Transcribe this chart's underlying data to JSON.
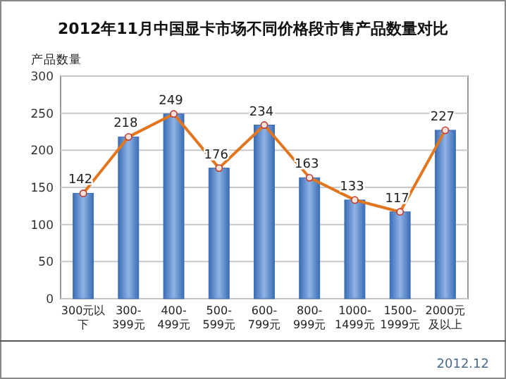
{
  "chart_data": {
    "type": "bar",
    "title": "2012年11月中国显卡市场不同价格段市售产品数量对比",
    "ylabel": "产品数量",
    "categories": [
      "300元以下",
      "300-399元",
      "400-499元",
      "500-599元",
      "600-799元",
      "800-999元",
      "1000-1499元",
      "1500-1999元",
      "2000元及以上"
    ],
    "series": [
      {
        "color": "#3b6db4",
        "values": [
          142,
          218,
          249,
          176,
          234,
          163,
          133,
          117,
          227
        ]
      },
      {
        "type": "line",
        "color": "#e2761f",
        "values": [
          142,
          218,
          249,
          176,
          234,
          163,
          133,
          117,
          227
        ],
        "value_labels": [
          "142",
          "218",
          "249",
          "176",
          "234",
          "163",
          "133",
          "117",
          "227"
        ]
      }
    ],
    "ylim": [
      0,
      300
    ],
    "yticks": [
      0,
      50,
      100,
      150,
      200,
      250,
      300
    ],
    "grid": "y",
    "marker": "circle",
    "line_style": "solid",
    "annotations": [
      "2012.12"
    ]
  }
}
